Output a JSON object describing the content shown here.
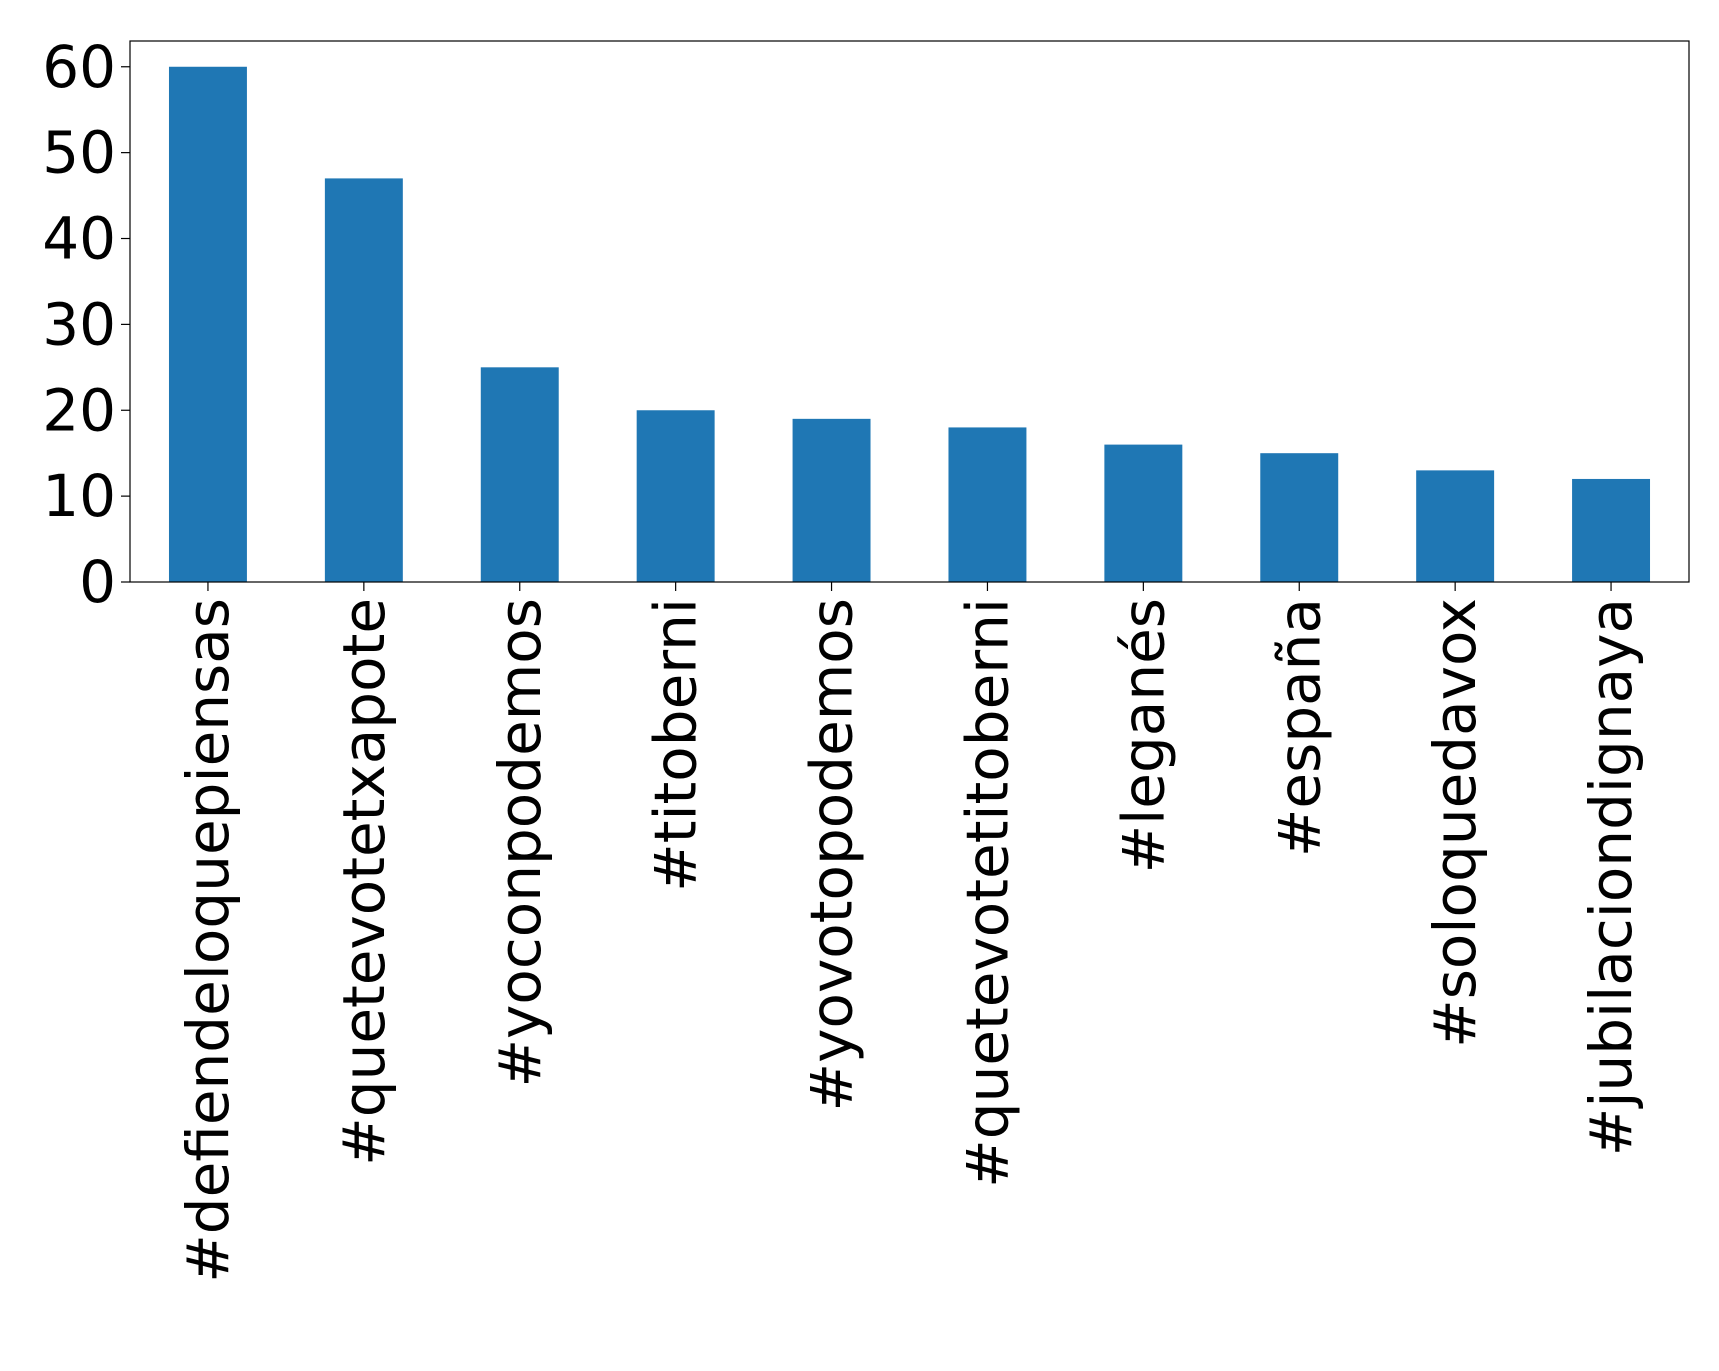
{
  "chart_data": {
    "type": "bar",
    "title": "",
    "xlabel": "",
    "ylabel": "",
    "categories": [
      "#defiendeloquepiensas",
      "#quetevotetxapote",
      "#yoconpodemos",
      "#titoberni",
      "#yovotopodemos",
      "#quetevotetitoberni",
      "#leganés",
      "#españa",
      "#soloquedavox",
      "#jubilaciondignaya"
    ],
    "values": [
      60,
      47,
      25,
      20,
      19,
      18,
      16,
      15,
      13,
      12
    ],
    "ylim": [
      0,
      63
    ],
    "yticks": [
      0,
      10,
      20,
      30,
      40,
      50,
      60
    ],
    "bar_color": "#1f77b4",
    "grid": false,
    "legend": "none"
  }
}
